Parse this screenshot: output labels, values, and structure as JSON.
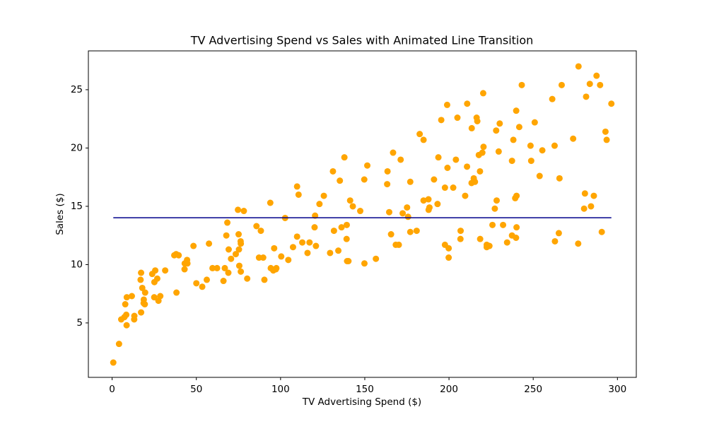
{
  "chart_data": {
    "type": "scatter",
    "title": "TV Advertising Spend vs Sales with Animated Line Transition",
    "xlabel": "TV Advertising Spend ($)",
    "ylabel": "Sales ($)",
    "color": "#ffa500",
    "x": [
      230.1,
      44.5,
      17.2,
      151.5,
      180.8,
      8.7,
      57.5,
      120.2,
      8.6,
      199.8,
      66.1,
      214.7,
      23.8,
      97.5,
      204.1,
      195.4,
      67.8,
      281.4,
      69.2,
      147.3,
      218.4,
      237.4,
      13.2,
      228.3,
      62.3,
      262.9,
      142.9,
      240.1,
      248.8,
      70.6,
      292.9,
      112.9,
      97.2,
      265.6,
      95.7,
      290.7,
      266.9,
      74.7,
      43.1,
      228,
      202.5,
      177,
      293.6,
      206.9,
      25.1,
      175.1,
      89.7,
      239.9,
      227.2,
      66.9,
      199.8,
      100.4,
      216.4,
      182.6,
      262.7,
      198.9,
      7.3,
      136.2,
      210.8,
      210.7,
      53.5,
      261.3,
      239.3,
      102.7,
      131.1,
      69,
      31.5,
      139.3,
      237.4,
      216.8,
      199.1,
      109.8,
      26.8,
      129.4,
      213.4,
      16.9,
      27.5,
      120.5,
      5.4,
      116,
      76.4,
      239.8,
      75.3,
      68.4,
      213.5,
      193.2,
      76.3,
      110.7,
      88.3,
      109.8,
      134.3,
      28.6,
      217.7,
      250.9,
      107.4,
      163.3,
      197.6,
      184.9,
      289.7,
      135.2,
      222.4,
      296.4,
      280.2,
      187.9,
      238.2,
      137.9,
      25,
      90.4,
      13.1,
      255.4,
      225.8,
      241.7,
      175.7,
      209.6,
      78.2,
      75.1,
      139.2,
      76.4,
      125.7,
      19.4,
      141.3,
      18.8,
      224,
      123.1,
      229.5,
      87.2,
      7.8,
      80.2,
      220.3,
      59.6,
      0.7,
      265.2,
      8.4,
      219.8,
      36.9,
      48.3,
      25.6,
      273.7,
      43,
      184.9,
      73.4,
      193.7,
      220.5,
      104.6,
      96.2,
      140.3,
      240.1,
      243.2,
      38,
      44.7,
      280.7,
      121,
      197.6,
      171.3,
      187.8,
      4.1,
      93.9,
      149.8,
      11.7,
      131.7,
      172.5,
      85.7,
      188.4,
      163.5,
      117.2,
      234.5,
      17.9,
      206.8,
      215.4,
      284.3,
      50,
      164.5,
      19.6,
      168.4,
      222.4,
      276.9,
      248.4,
      170.2,
      276.7,
      165.6,
      156.6,
      218.5,
      56.2,
      287.6,
      253.8,
      205,
      139.5,
      191.1,
      286,
      18.7,
      39.5,
      75.5,
      17.2,
      166.8,
      149.7,
      38.2,
      94.2,
      177,
      283.6,
      232.1
    ],
    "values": [
      22.1,
      10.4,
      9.3,
      18.5,
      12.9,
      7.2,
      11.8,
      13.2,
      4.8,
      10.6,
      8.6,
      17.4,
      9.2,
      9.7,
      19,
      22.4,
      12.5,
      24.4,
      11.3,
      14.6,
      18,
      12.5,
      5.6,
      15.5,
      9.7,
      12,
      15,
      15.9,
      18.9,
      10.5,
      21.4,
      11.9,
      9.6,
      17.4,
      9.5,
      12.8,
      25.4,
      14.7,
      10.1,
      21.5,
      16.6,
      17.1,
      20.7,
      12.9,
      8.5,
      14.9,
      10.6,
      23.2,
      14.8,
      9.7,
      11.4,
      10.7,
      22.6,
      21.2,
      20.2,
      23.7,
      5.5,
      13.2,
      23.8,
      18.4,
      8.1,
      24.2,
      15.7,
      14,
      18,
      9.3,
      9.5,
      13.4,
      18.9,
      22.3,
      18.3,
      12.4,
      8.8,
      11,
      17,
      8.7,
      6.9,
      14.2,
      5.3,
      11,
      11.8,
      12.3,
      11.3,
      13.6,
      21.7,
      15.2,
      12,
      16,
      12.9,
      16.7,
      11.2,
      7.3,
      19.4,
      22.2,
      11.5,
      16.9,
      11.7,
      15.5,
      25.4,
      17.2,
      11.7,
      23.8,
      14.8,
      14.7,
      20.7,
      19.2,
      7.2,
      8.7,
      5.3,
      19.8,
      13.4,
      21.8,
      14.1,
      15.9,
      14.6,
      12.6,
      12.2,
      9.4,
      15.9,
      6.6,
      15.5,
      7,
      11.6,
      15.2,
      19.7,
      10.6,
      6.6,
      8.8,
      24.7,
      9.7,
      1.6,
      12.7,
      5.7,
      19.6,
      10.8,
      11.6,
      9.5,
      20.8,
      9.6,
      20.7,
      10.9,
      19.2,
      20.1,
      10.4,
      11.4,
      10.3,
      13.2,
      25.4,
      10.9,
      10.1,
      16.1,
      11.6,
      16.6,
      19,
      15.6,
      3.2,
      15.3,
      10.1,
      7.3,
      12.9,
      14.4,
      13.3,
      14.9,
      18,
      11.9,
      11.9,
      8,
      12.2,
      17.1,
      15,
      8.4,
      14.5,
      7.6,
      11.7,
      11.5,
      27,
      20.2,
      11.7,
      11.8,
      12.6,
      10.5,
      12.2,
      8.7,
      26.2,
      17.6,
      22.6,
      10.3,
      17.3,
      15.9,
      6.7,
      10.8,
      9.9,
      5.9,
      19.6,
      17.3,
      7.6,
      9.7,
      12.8,
      25.5,
      13.4
    ],
    "line": {
      "color": "#00008b",
      "x": [
        0.7,
        296.4
      ],
      "y": [
        14.02,
        14.02
      ]
    },
    "xlim": [
      -14.1,
      311.2
    ],
    "xticks": [
      0,
      50,
      100,
      150,
      200,
      250,
      300
    ],
    "ylim": [
      0.33,
      28.33
    ],
    "yticks": [
      5,
      10,
      15,
      20,
      25
    ],
    "grid": false
  }
}
